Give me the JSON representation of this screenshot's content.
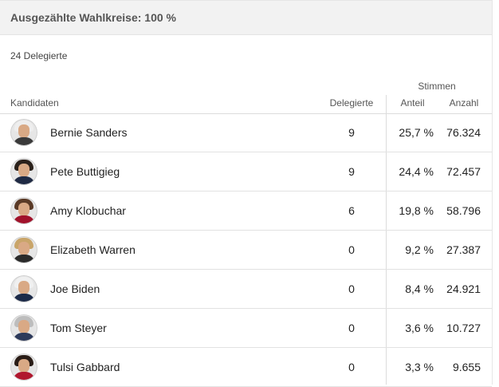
{
  "header": {
    "title": "Ausgezählte Wahlkreise: 100 %"
  },
  "summary": {
    "delegates_total": "24 Delegierte"
  },
  "table": {
    "group_header": "Stimmen",
    "columns": {
      "candidates": "Kandidaten",
      "delegates": "Delegierte",
      "share": "Anteil",
      "count": "Anzahl"
    },
    "rows": [
      {
        "name": "Bernie Sanders",
        "delegates": "9",
        "share": "25,7 %",
        "count": "76.324",
        "avatar": {
          "hair": "#eeeeee",
          "body": "#3a3a3a"
        }
      },
      {
        "name": "Pete Buttigieg",
        "delegates": "9",
        "share": "24,4 %",
        "count": "72.457",
        "avatar": {
          "hair": "#2b211b",
          "body": "#1f2a44"
        }
      },
      {
        "name": "Amy Klobuchar",
        "delegates": "6",
        "share": "19,8 %",
        "count": "58.796",
        "avatar": {
          "hair": "#5a3a26",
          "body": "#a1122b"
        }
      },
      {
        "name": "Elizabeth Warren",
        "delegates": "0",
        "share": "9,2 %",
        "count": "27.387",
        "avatar": {
          "hair": "#c9a56a",
          "body": "#2a2a2a"
        }
      },
      {
        "name": "Joe Biden",
        "delegates": "0",
        "share": "8,4 %",
        "count": "24.921",
        "avatar": {
          "hair": "#f0f0f0",
          "body": "#1c2a48"
        }
      },
      {
        "name": "Tom Steyer",
        "delegates": "0",
        "share": "3,6 %",
        "count": "10.727",
        "avatar": {
          "hair": "#bdbdbd",
          "body": "#2d3a5a"
        }
      },
      {
        "name": "Tulsi Gabbard",
        "delegates": "0",
        "share": "3,3 %",
        "count": "9.655",
        "avatar": {
          "hair": "#2a1d17",
          "body": "#b0172e"
        }
      }
    ]
  }
}
